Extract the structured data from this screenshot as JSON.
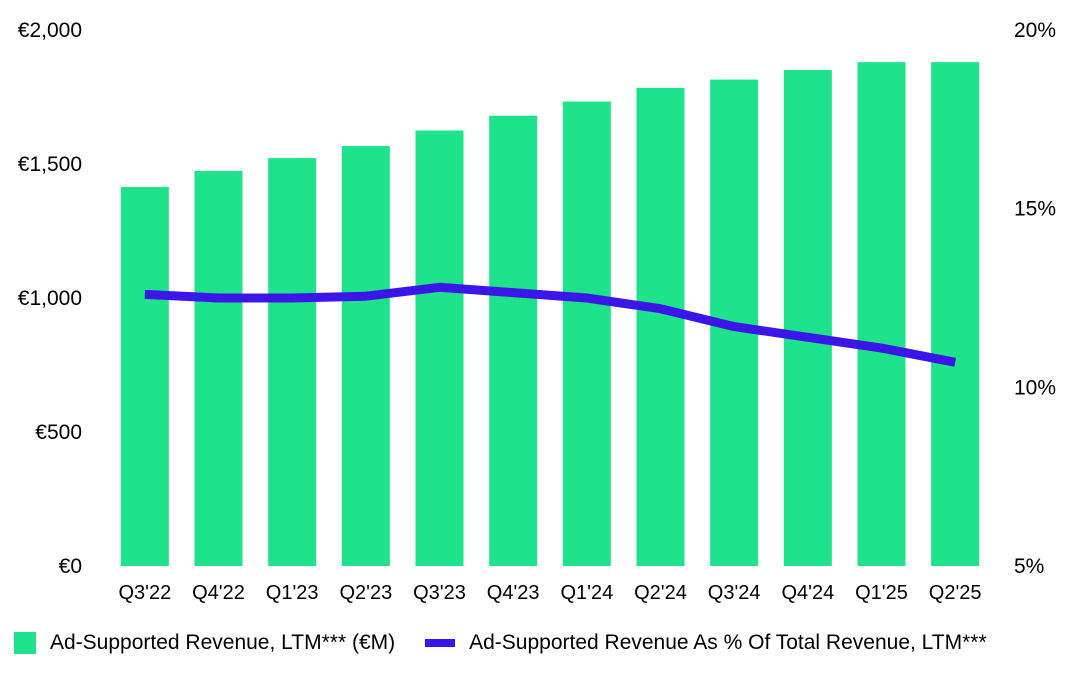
{
  "chart_data": {
    "type": "bar",
    "categories": [
      "Q3'22",
      "Q4'22",
      "Q1'23",
      "Q2'23",
      "Q3'23",
      "Q4'23",
      "Q1'24",
      "Q2'24",
      "Q3'24",
      "Q4'24",
      "Q1'25",
      "Q2'25"
    ],
    "series": [
      {
        "name": "Ad-Supported Revenue, LTM*** (€M)",
        "type": "bar",
        "axis": "left",
        "color": "#1ee38a",
        "values": [
          1414,
          1474,
          1522,
          1567,
          1625,
          1680,
          1733,
          1784,
          1815,
          1851,
          1880,
          1880
        ]
      },
      {
        "name": "Ad-Supported Revenue As % Of Total Revenue, LTM***",
        "type": "line",
        "axis": "right",
        "color": "#3a17e8",
        "values": [
          12.6,
          12.5,
          12.5,
          12.55,
          12.8,
          12.65,
          12.5,
          12.2,
          11.7,
          11.4,
          11.1,
          10.7
        ]
      }
    ],
    "y_left": {
      "ylim": [
        0,
        2000
      ],
      "ticks": [
        0,
        500,
        1000,
        1500,
        2000
      ],
      "tick_labels": [
        "€0",
        "€500",
        "€1,000",
        "€1,500",
        "€2,000"
      ]
    },
    "y_right": {
      "ylim": [
        5,
        20
      ],
      "ticks": [
        5,
        10,
        15,
        20
      ],
      "tick_labels": [
        "5%",
        "10%",
        "15%",
        "20%"
      ]
    },
    "grid": false,
    "legend_position": "bottom"
  },
  "legend": {
    "bar_label": "Ad-Supported Revenue, LTM*** (€M)",
    "line_label": "Ad-Supported Revenue As % Of Total Revenue, LTM***"
  }
}
